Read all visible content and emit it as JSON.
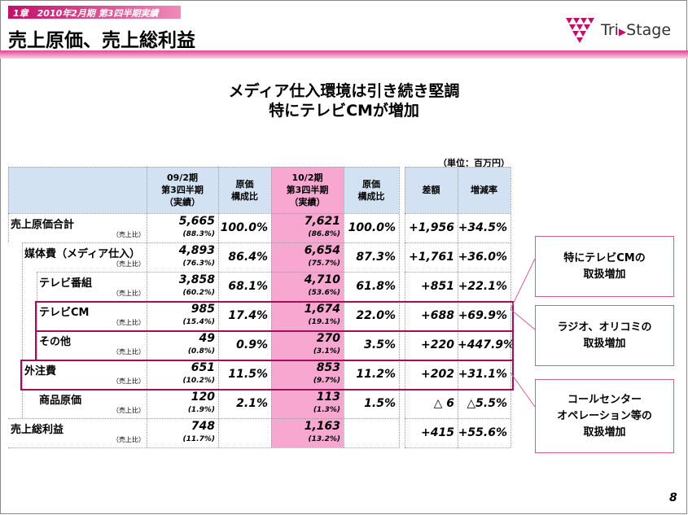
{
  "header": {
    "chapter": "1章　2010年2月期 第3四半期実績",
    "title": "売上原価、売上総利益",
    "logo_left": "Tri",
    "logo_right": "Stage"
  },
  "headline": [
    "メディア仕入環境は引き続き堅調",
    "特にテレビCMが増加"
  ],
  "unit": "（単位：百万円）",
  "table": {
    "columns": [
      [
        "09/2期",
        "第3四半期",
        "（実績）"
      ],
      [
        "原価",
        "構成比"
      ],
      [
        "10/2期",
        "第3四半期",
        "（実績）"
      ],
      [
        "原価",
        "構成比"
      ],
      [
        "差額"
      ],
      [
        "増減率"
      ]
    ],
    "rows": [
      {
        "label": "売上原価合計",
        "sub": "（売上比）",
        "prev": "5,665",
        "prev_ratio": "(88.3%)",
        "prev_share": "100.0%",
        "cur": "7,621",
        "cur_ratio": "(86.8%)",
        "cur_share": "100.0%",
        "diff": "+1,956",
        "rate": "+34.5%"
      },
      {
        "label": "媒体費（メディア仕入）",
        "sub": "（売上比）",
        "prev": "4,893",
        "prev_ratio": "(76.3%)",
        "prev_share": "86.4%",
        "cur": "6,654",
        "cur_ratio": "(75.7%)",
        "cur_share": "87.3%",
        "diff": "+1,761",
        "rate": "+36.0%"
      },
      {
        "label": "テレビ番組",
        "sub": "（売上比）",
        "prev": "3,858",
        "prev_ratio": "(60.2%)",
        "prev_share": "68.1%",
        "cur": "4,710",
        "cur_ratio": "(53.6%)",
        "cur_share": "61.8%",
        "diff": "+851",
        "rate": "+22.1%"
      },
      {
        "label": "テレビCM",
        "sub": "（売上比）",
        "prev": "985",
        "prev_ratio": "(15.4%)",
        "prev_share": "17.4%",
        "cur": "1,674",
        "cur_ratio": "(19.1%)",
        "cur_share": "22.0%",
        "diff": "+688",
        "rate": "+69.9%"
      },
      {
        "label": "その他",
        "sub": "（売上比）",
        "prev": "49",
        "prev_ratio": "(0.8%)",
        "prev_share": "0.9%",
        "cur": "270",
        "cur_ratio": "(3.1%)",
        "cur_share": "3.5%",
        "diff": "+220",
        "rate": "+447.9%"
      },
      {
        "label": "外注費",
        "sub": "（売上比）",
        "prev": "651",
        "prev_ratio": "(10.2%)",
        "prev_share": "11.5%",
        "cur": "853",
        "cur_ratio": "(9.7%)",
        "cur_share": "11.2%",
        "diff": "+202",
        "rate": "+31.1%"
      },
      {
        "label": "商品原価",
        "sub": "（売上比）",
        "prev": "120",
        "prev_ratio": "(1.9%)",
        "prev_share": "2.1%",
        "cur": "113",
        "cur_ratio": "(1.3%)",
        "cur_share": "1.5%",
        "diff": "△ 6",
        "rate": "△5.5%"
      },
      {
        "label": "売上総利益",
        "sub": "（売上比）",
        "prev": "748",
        "prev_ratio": "(11.7%)",
        "cur": "1,163",
        "cur_ratio": "(13.2%)",
        "diff": "+415",
        "rate": "+55.6%"
      }
    ]
  },
  "callouts": [
    [
      "特にテレビCMの",
      "取扱増加"
    ],
    [
      "ラジオ、オリコミの",
      "取扱増加"
    ],
    [
      "コールセンター",
      "オペレーション等の",
      "取扱増加"
    ]
  ],
  "page_number": "8"
}
